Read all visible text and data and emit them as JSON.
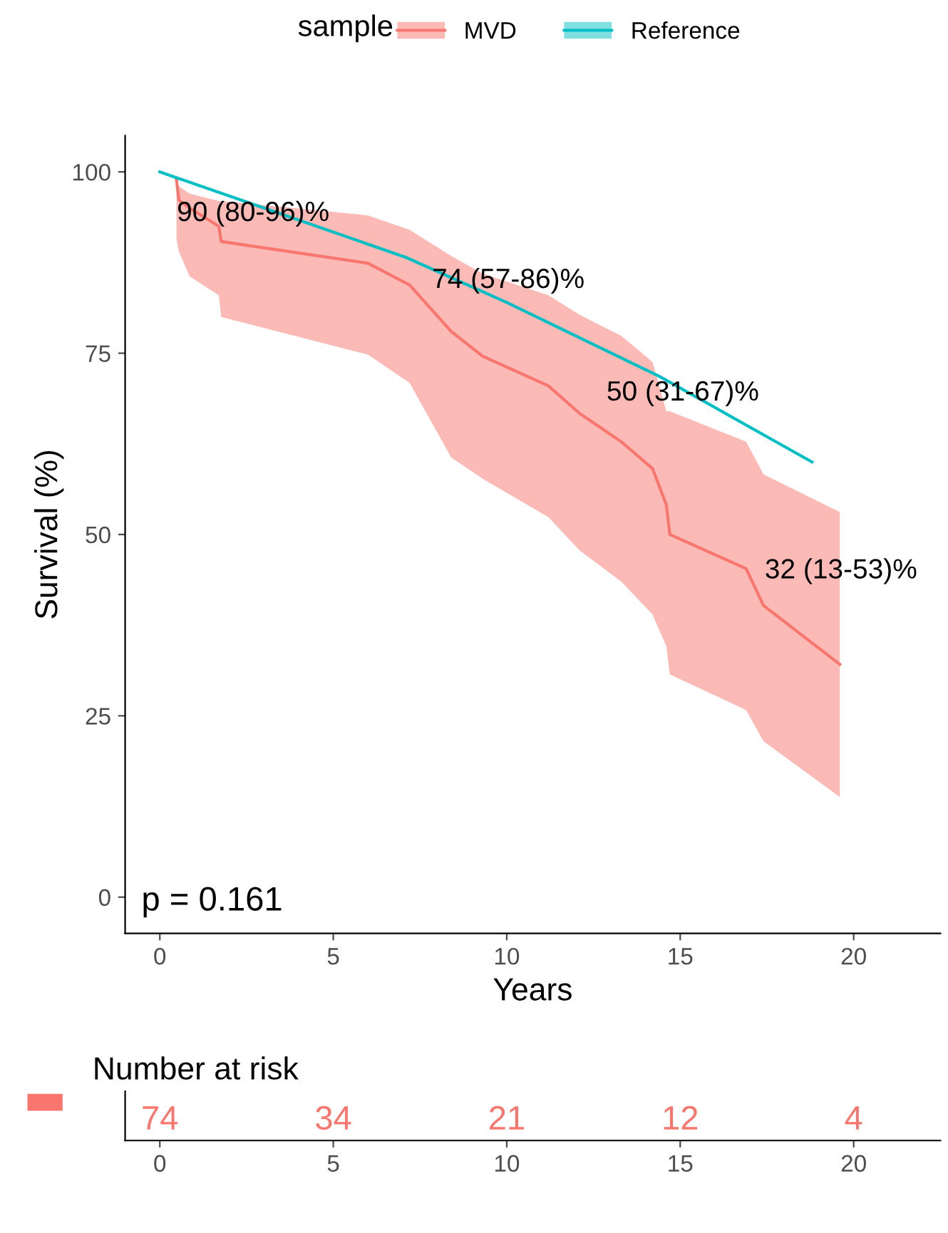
{
  "chart_data": {
    "type": "line",
    "xlabel": "Years",
    "ylabel": "Survival (%)",
    "legend_title": "sample",
    "legend": "top",
    "xlim": [
      -1,
      22.5
    ],
    "ylim": [
      -5,
      105
    ],
    "xticks": [
      0,
      5,
      10,
      15,
      20
    ],
    "yticks": [
      0,
      25,
      50,
      75,
      100
    ],
    "grid": false,
    "series": [
      {
        "name": "MVD",
        "color": "#f8766d",
        "x": [
          0.48,
          0.55,
          0.86,
          1.7,
          1.77,
          6.0,
          7.2,
          8.4,
          9.3,
          11.2,
          12.1,
          13.3,
          14.2,
          14.6,
          14.7,
          16.9,
          17.4,
          19.6
        ],
        "values": [
          98.9,
          96.1,
          95,
          92.5,
          90.4,
          87.4,
          84.4,
          78,
          74.6,
          70.5,
          66.7,
          62.8,
          59.1,
          54.1,
          50,
          45.3,
          40.2,
          32.1
        ],
        "lower": [
          90.7,
          89,
          85.6,
          83,
          80,
          74.8,
          70.9,
          60.6,
          57.7,
          52.4,
          47.8,
          43.5,
          39,
          34.6,
          30.7,
          25.8,
          21.5,
          13.8
        ],
        "upper": [
          98.9,
          98,
          97,
          96,
          96,
          94,
          92,
          88.4,
          86,
          83,
          80.3,
          77.4,
          73.8,
          67,
          67,
          62.8,
          58.3,
          53.1
        ]
      },
      {
        "name": "Reference",
        "color": "#00bfc4",
        "x": [
          0,
          3.5,
          7.1,
          10,
          14.4,
          18.8
        ],
        "values": [
          100,
          94.2,
          88.2,
          82,
          71.8,
          60
        ]
      }
    ],
    "annotations": [
      "90 (80-96)%",
      "74 (57-86)%",
      "50 (31-67)%",
      "32 (13-53)%",
      "p = 0.161",
      "Number at risk",
      "74",
      "34",
      "21",
      "12",
      "4",
      "0",
      "5",
      "10",
      "15",
      "20"
    ]
  }
}
